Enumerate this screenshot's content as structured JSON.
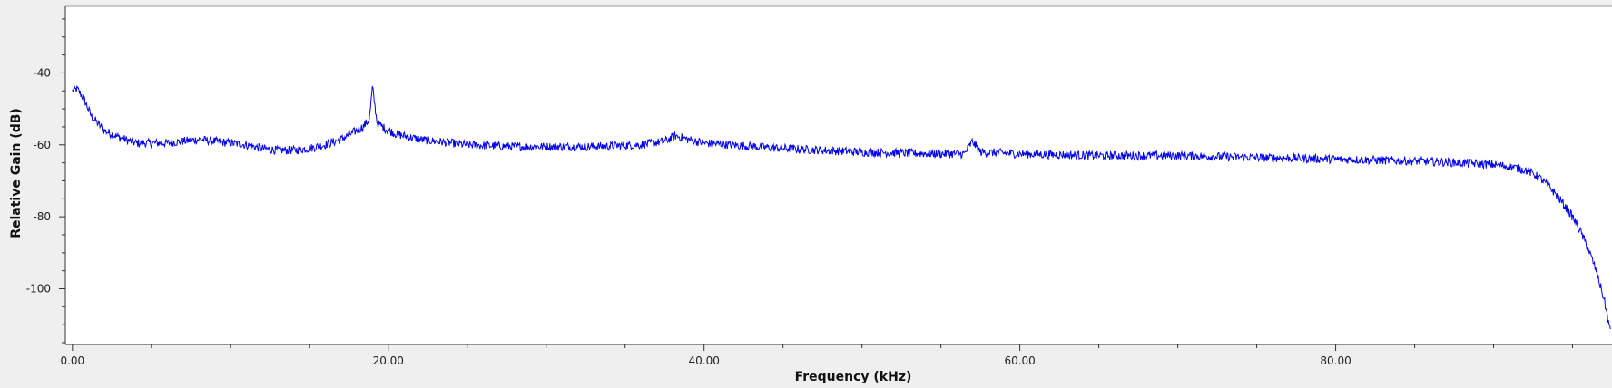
{
  "chart_data": {
    "type": "line",
    "title": "",
    "xlabel": "Frequency (kHz)",
    "ylabel": "Relative Gain (dB)",
    "xlim": [
      -0.45,
      97.5
    ],
    "ylim": [
      -115.5,
      -21.5
    ],
    "x_ticks": [
      {
        "value": 0,
        "label": "0.00"
      },
      {
        "value": 20,
        "label": "20.00"
      },
      {
        "value": 40,
        "label": "40.00"
      },
      {
        "value": 60,
        "label": "60.00"
      },
      {
        "value": 80,
        "label": "80.00"
      }
    ],
    "y_ticks": [
      {
        "value": -40,
        "label": "-40"
      },
      {
        "value": -60,
        "label": "-60"
      },
      {
        "value": -80,
        "label": "-80"
      },
      {
        "value": -100,
        "label": "-100"
      }
    ],
    "grid": false,
    "legend": "none",
    "series": [
      {
        "color": "#0000ee",
        "noise_db": 1.2,
        "x": [
          0,
          0.3,
          0.7,
          1.2,
          2,
          3,
          4,
          5,
          6,
          7,
          8,
          9,
          10,
          11,
          12,
          13,
          14,
          15,
          16,
          17,
          17.8,
          18.4,
          18.8,
          19,
          19.3,
          19.8,
          20.5,
          22,
          25,
          28,
          30,
          33,
          36,
          37.5,
          38.2,
          39,
          40,
          45,
          50,
          55,
          56.5,
          57,
          57.5,
          60,
          65,
          70,
          75,
          80,
          85,
          88,
          90,
          91,
          92,
          92.5,
          93,
          93.5,
          94,
          94.5,
          95,
          95.5,
          96,
          96.5,
          97,
          97.4
        ],
        "y": [
          -45,
          -44.5,
          -47,
          -52,
          -56,
          -58,
          -59.5,
          -59.5,
          -59.5,
          -59,
          -58.5,
          -59,
          -59.5,
          -60,
          -61,
          -61.5,
          -61.5,
          -61,
          -60,
          -58.5,
          -56.5,
          -55,
          -53,
          -44,
          -54,
          -55.5,
          -57,
          -58.5,
          -60,
          -60.5,
          -60.5,
          -60.5,
          -60,
          -59,
          -57.5,
          -58.5,
          -59.5,
          -61,
          -62,
          -62.5,
          -62.5,
          -59,
          -62,
          -62.5,
          -63,
          -63,
          -63.5,
          -64,
          -64.5,
          -65,
          -65.5,
          -66,
          -67,
          -68,
          -69.5,
          -71.5,
          -74,
          -77,
          -80,
          -84,
          -89,
          -95,
          -103,
          -112
        ]
      }
    ]
  }
}
